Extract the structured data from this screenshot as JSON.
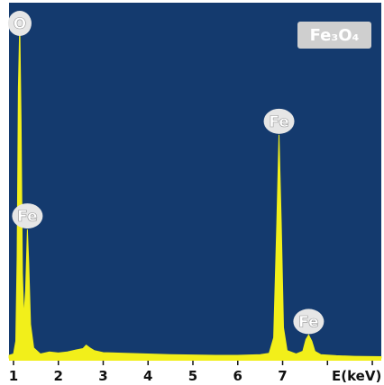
{
  "chart_data": {
    "type": "area",
    "title": "",
    "legend": "Fe₃O₄",
    "xlabel": "E(keV)",
    "ylabel": "",
    "xlim": [
      0.9,
      9.2
    ],
    "ylim": [
      0,
      100
    ],
    "grid": false,
    "x_ticks": [
      1,
      2,
      3,
      4,
      5,
      6,
      7,
      8,
      9
    ],
    "x_tick_labels": [
      "1",
      "2",
      "3",
      "4",
      "5",
      "6",
      "7",
      "",
      ""
    ],
    "spectrum": [
      [
        0.9,
        0.8
      ],
      [
        1.0,
        1.2
      ],
      [
        1.05,
        5
      ],
      [
        1.08,
        30
      ],
      [
        1.11,
        80
      ],
      [
        1.14,
        99
      ],
      [
        1.17,
        70
      ],
      [
        1.2,
        25
      ],
      [
        1.23,
        12
      ],
      [
        1.27,
        20
      ],
      [
        1.31,
        38
      ],
      [
        1.34,
        28
      ],
      [
        1.38,
        10
      ],
      [
        1.45,
        3
      ],
      [
        1.6,
        1.2
      ],
      [
        1.8,
        1.8
      ],
      [
        2.0,
        1.5
      ],
      [
        2.2,
        1.8
      ],
      [
        2.4,
        2.4
      ],
      [
        2.55,
        2.8
      ],
      [
        2.62,
        3.8
      ],
      [
        2.7,
        3
      ],
      [
        2.8,
        2.2
      ],
      [
        3.0,
        1.6
      ],
      [
        3.5,
        1.4
      ],
      [
        4.0,
        1.2
      ],
      [
        4.5,
        1.0
      ],
      [
        5.0,
        0.9
      ],
      [
        5.5,
        0.8
      ],
      [
        6.0,
        0.8
      ],
      [
        6.5,
        1.0
      ],
      [
        6.7,
        1.4
      ],
      [
        6.8,
        6
      ],
      [
        6.87,
        40
      ],
      [
        6.92,
        66
      ],
      [
        6.97,
        40
      ],
      [
        7.02,
        9
      ],
      [
        7.1,
        2.2
      ],
      [
        7.3,
        1.2
      ],
      [
        7.45,
        2
      ],
      [
        7.52,
        5.5
      ],
      [
        7.58,
        6.8
      ],
      [
        7.65,
        5
      ],
      [
        7.72,
        2
      ],
      [
        7.85,
        1.0
      ],
      [
        8.2,
        0.7
      ],
      [
        8.6,
        0.5
      ],
      [
        9.2,
        0.4
      ]
    ],
    "peaks": [
      {
        "label": "O",
        "x": 1.14,
        "y": 99
      },
      {
        "label": "Fe",
        "x": 1.31,
        "y": 38
      },
      {
        "label": "Fe",
        "x": 6.92,
        "y": 66
      },
      {
        "label": "Fe",
        "x": 7.58,
        "y": 6.8
      }
    ]
  },
  "colors": {
    "background": "#143a6e",
    "spectrum": "#f2ef1a",
    "peak_badge": "#e6e6e6",
    "peak_badge_text": "#ffffff",
    "legend_bg": "#cfcfcf",
    "legend_text": "#ffffff",
    "axis_text": "#111111"
  }
}
